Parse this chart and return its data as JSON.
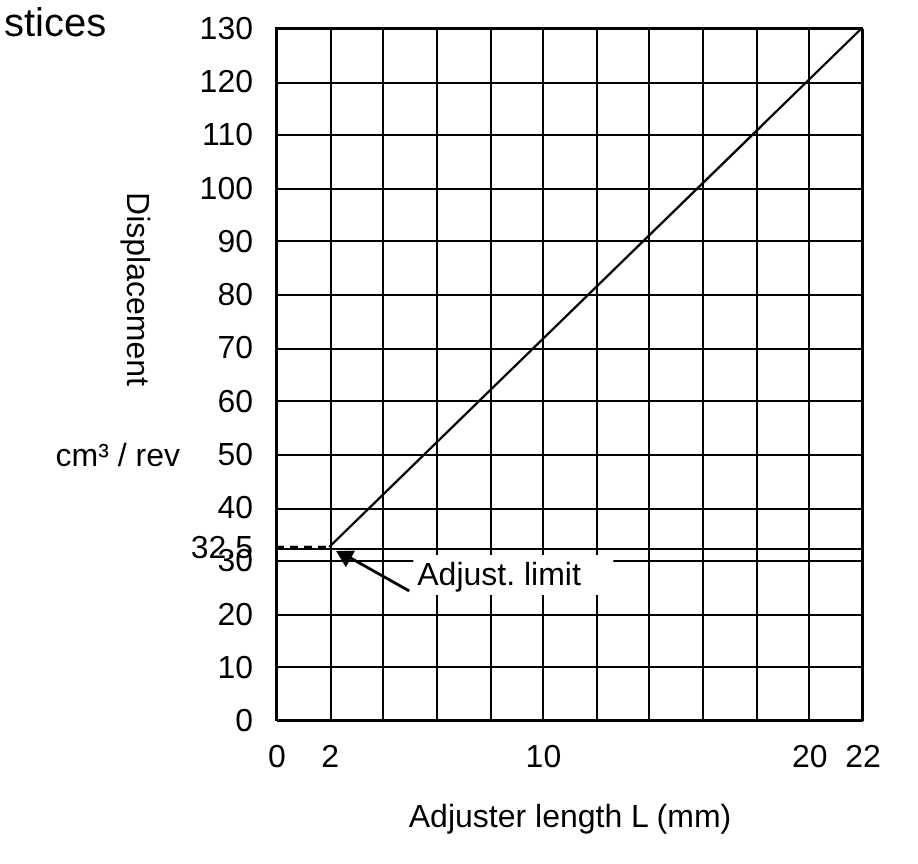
{
  "chart_data": {
    "type": "line",
    "title": "stices",
    "xlabel": "Adjuster length   L (mm)",
    "ylabel": "Displacement",
    "annotations": [
      "cm³ / rev",
      {
        "text": "Adjust. limit",
        "x": 2,
        "y": 32.5
      }
    ],
    "series": [
      {
        "x": [
          2,
          22
        ],
        "values": [
          32.5,
          130
        ],
        "color": "#000000"
      },
      {
        "x": [
          0,
          2
        ],
        "values": [
          32.5,
          32.5
        ],
        "color": "#000000",
        "line_style": "dashed"
      }
    ],
    "xlim": [
      0,
      22
    ],
    "xticks": [
      0,
      2,
      {
        "value": 4,
        "label": null
      },
      {
        "value": 6,
        "label": null
      },
      {
        "value": 8,
        "label": null
      },
      10,
      {
        "value": 12,
        "label": null
      },
      {
        "value": 14,
        "label": null
      },
      {
        "value": 16,
        "label": null
      },
      {
        "value": 18,
        "label": null
      },
      20,
      22
    ],
    "ylim": [
      0,
      130
    ],
    "yticks": [
      0,
      10,
      20,
      30,
      32.5,
      40,
      50,
      60,
      70,
      80,
      90,
      100,
      110,
      120,
      130
    ],
    "grid": true,
    "marker": "none",
    "line_style": "solid"
  }
}
